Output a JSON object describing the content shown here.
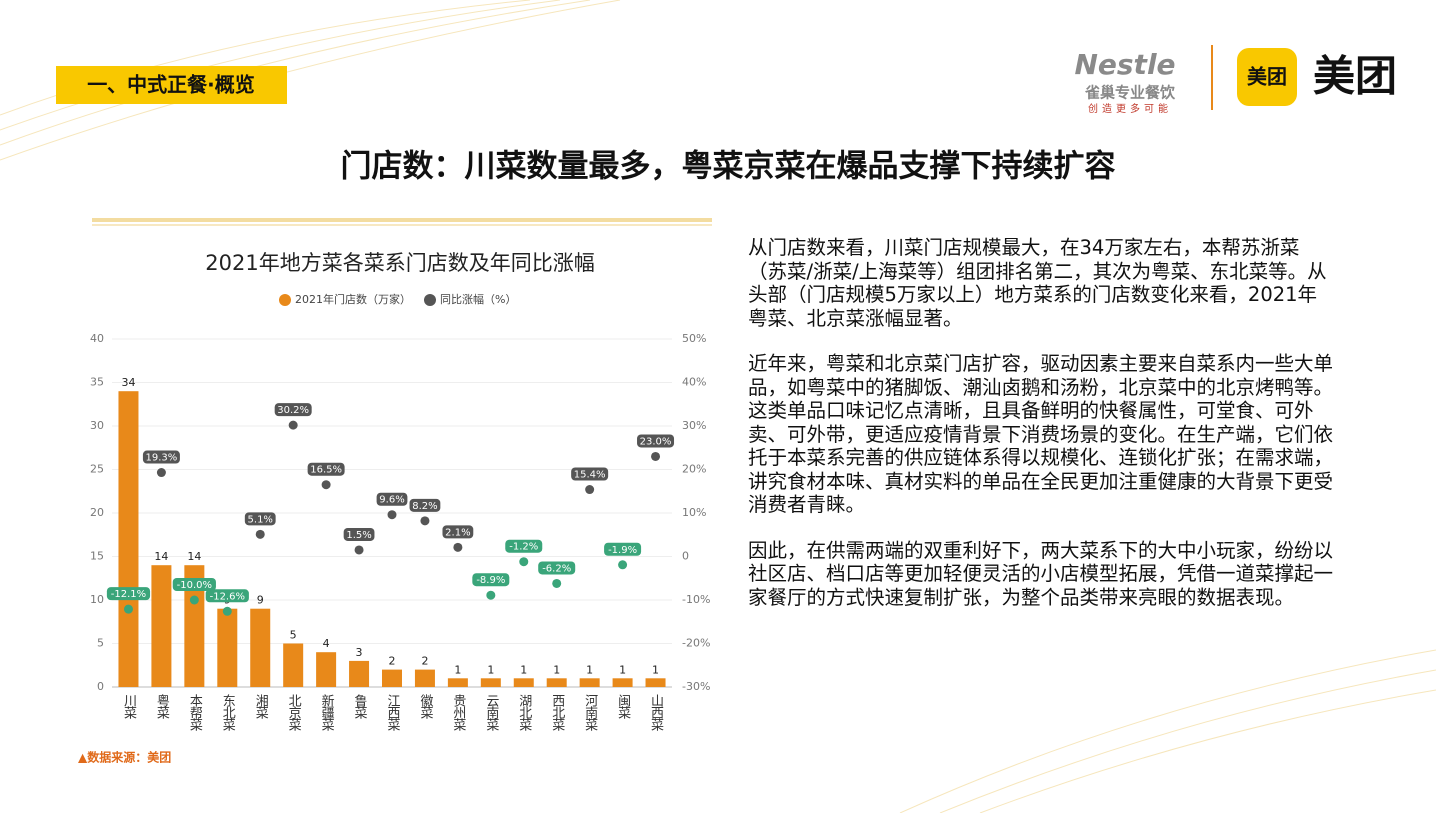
{
  "header": {
    "section": "一、中式正餐·概览",
    "title": "门店数：川菜数量最多，粤菜京菜在爆品支撑下持续扩容",
    "logo_nestle": "Nestle",
    "logo_nestle_sub": "雀巢专业餐饮",
    "logo_nestle_slogan": "创造更多可能",
    "logo_meituan_icon": "美团",
    "logo_meituan": "美团"
  },
  "text": {
    "paragraphs": [
      "从门店数来看，川菜门店规模最大，在34万家左右，本帮苏浙菜（苏菜/浙菜/上海菜等）组团排名第二，其次为粤菜、东北菜等。从头部（门店规模5万家以上）地方菜系的门店数变化来看，2021年粤菜、北京菜涨幅显著。",
      "近年来，粤菜和北京菜门店扩容，驱动因素主要来自菜系内一些大单品，如粤菜中的猪脚饭、潮汕卤鹅和汤粉，北京菜中的北京烤鸭等。这类单品口味记忆点清晰，且具备鲜明的快餐属性，可堂食、可外卖、可外带，更适应疫情背景下消费场景的变化。在生产端，它们依托于本菜系完善的供应链体系得以规模化、连锁化扩张；在需求端，讲究食材本味、真材实料的单品在全民更加注重健康的大背景下更受消费者青睐。",
      "因此，在供需两端的双重利好下，两大菜系下的大中小玩家，纷纷以社区店、档口店等更加轻便灵活的小店模型拓展，凭借一道菜撑起一家餐厅的方式快速复制扩张，为整个品类带来亮眼的数据表现。"
    ],
    "source": "▲数据来源：美团"
  },
  "chart_data": {
    "type": "bar_line",
    "title": "2021年地方菜各菜系门店数及年同比涨幅",
    "categories": [
      "川菜",
      "粤菜",
      "本帮菜",
      "东北菜",
      "湘菜",
      "北京菜",
      "新疆菜",
      "鲁菜",
      "江西菜",
      "徽菜",
      "贵州菜",
      "云南菜",
      "湖北菜",
      "西北菜",
      "河南菜",
      "闽菜",
      "山西菜"
    ],
    "series": [
      {
        "name": "2021年门店数（万家）",
        "color": "#e8891a",
        "values": [
          34,
          14,
          14,
          9,
          9,
          5,
          4,
          3,
          2,
          2,
          1,
          1,
          1,
          1,
          1,
          1,
          1
        ]
      },
      {
        "name": "同比涨幅（%）",
        "color": "#555555",
        "negative_color": "#3aa57a",
        "axis": "y2",
        "values": [
          -12.1,
          19.3,
          -10.0,
          -12.6,
          5.1,
          30.2,
          16.5,
          1.5,
          9.6,
          8.2,
          2.1,
          -8.9,
          -1.2,
          -6.2,
          15.4,
          -1.9,
          23.0
        ],
        "value_labels": [
          "-12.1%",
          "19.3%",
          "-10.0%",
          "-12.6%",
          "5.1%",
          "30.2%",
          "16.5%",
          "1.5%",
          "9.6%",
          "8.2%",
          "2.1%",
          "-8.9%",
          "-1.2%",
          "-6.2%",
          "15.4%",
          "-1.9%",
          "23.0%"
        ]
      }
    ],
    "ylim": [
      0,
      40
    ],
    "yticks": [
      0,
      5,
      10,
      15,
      20,
      25,
      30,
      35,
      40
    ],
    "y2lim": [
      -30,
      50
    ],
    "y2ticks": [
      {
        "value": -30,
        "label": "-30%"
      },
      {
        "value": -20,
        "label": "-20%"
      },
      {
        "value": -10,
        "label": "-10%"
      },
      0,
      {
        "value": 10,
        "label": "10%"
      },
      {
        "value": 20,
        "label": "20%"
      },
      {
        "value": 30,
        "label": "30%"
      },
      {
        "value": 40,
        "label": "40%"
      },
      {
        "value": 50,
        "label": "50%"
      }
    ],
    "grid": true,
    "legend": "top"
  }
}
